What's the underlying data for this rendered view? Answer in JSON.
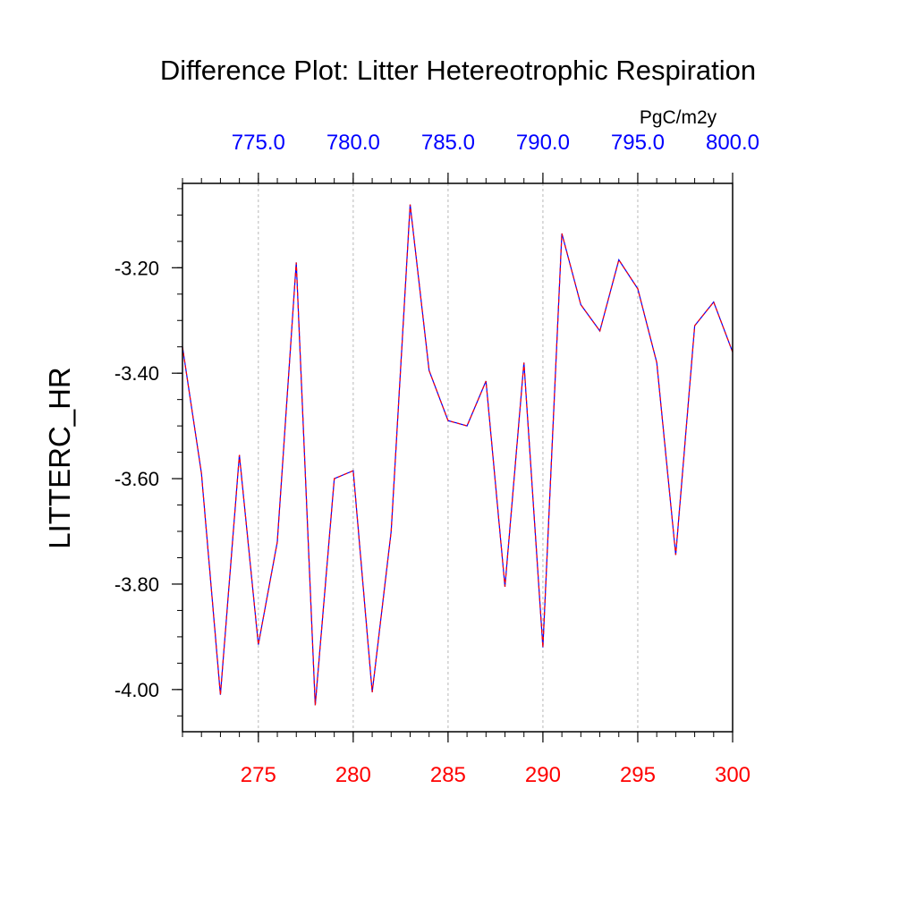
{
  "chart_data": {
    "type": "line",
    "title": "Difference Plot: Litter Hetereotrophic Respiration",
    "ylabel": "LITTERC_HR",
    "units": "PgC/m2y",
    "xlim": [
      271,
      300
    ],
    "ylim": [
      -4.08,
      -3.04
    ],
    "grid": "vertical dashed lines at major x ticks",
    "x": [
      271,
      272,
      273,
      274,
      275,
      276,
      277,
      278,
      279,
      280,
      281,
      282,
      283,
      284,
      285,
      286,
      287,
      288,
      289,
      290,
      291,
      292,
      293,
      294,
      295,
      296,
      297,
      298,
      299,
      300
    ],
    "y": [
      -3.35,
      -3.59,
      -4.01,
      -3.555,
      -3.915,
      -3.72,
      -3.19,
      -4.03,
      -3.6,
      -3.585,
      -4.005,
      -3.7,
      -3.08,
      -3.395,
      -3.49,
      -3.5,
      -3.415,
      -3.805,
      -3.38,
      -3.92,
      -3.135,
      -3.27,
      -3.32,
      -3.185,
      -3.24,
      -3.38,
      -3.745,
      -3.31,
      -3.265,
      -3.36
    ],
    "series": [
      {
        "name": "",
        "color": "#0000ff",
        "style": "solid"
      },
      {
        "name": "",
        "color": "#ff0000",
        "style": "dashed"
      }
    ],
    "x_bottom_ticks": [
      "275",
      "280",
      "285",
      "290",
      "295",
      "300"
    ],
    "x_bottom_tick_values": [
      275,
      280,
      285,
      290,
      295,
      300
    ],
    "x_bottom_color": "#ff0000",
    "x_top_ticks": [
      "775.0",
      "780.0",
      "785.0",
      "790.0",
      "795.0",
      "800.0"
    ],
    "x_top_color": "#0000ff",
    "y_ticks": [
      "-3.20",
      "-3.40",
      "-3.60",
      "-3.80",
      "-4.00"
    ],
    "y_tick_values": [
      -3.2,
      -3.4,
      -3.6,
      -3.8,
      -4.0
    ]
  }
}
